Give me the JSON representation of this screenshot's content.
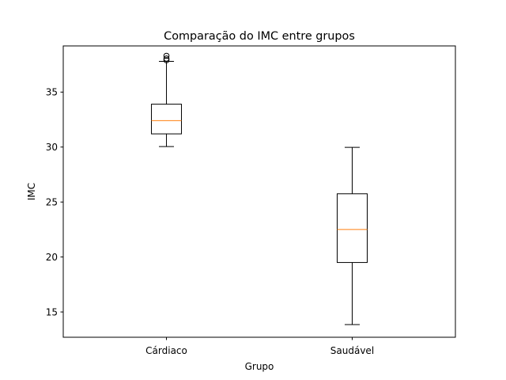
{
  "chart_data": {
    "type": "box",
    "title": "Comparação do IMC entre grupos",
    "xlabel": "Grupo",
    "ylabel": "IMC",
    "categories": [
      "Cárdiaco",
      "Saudável"
    ],
    "ylim": [
      12.7,
      39.2
    ],
    "yticks": [
      15,
      20,
      25,
      30,
      35
    ],
    "grid": false,
    "boxes": [
      {
        "category": "Cárdiaco",
        "whisker_low": 30.05,
        "q1": 31.2,
        "median": 32.4,
        "q3": 33.9,
        "whisker_high": 37.8,
        "outliers": [
          37.9,
          38.05,
          38.3
        ]
      },
      {
        "category": "Saudável",
        "whisker_low": 13.85,
        "q1": 19.5,
        "median": 22.5,
        "q3": 25.75,
        "whisker_high": 29.97,
        "outliers": []
      }
    ],
    "colors": {
      "median": "#ff7f0e",
      "box": "#000000",
      "axis": "#000000"
    }
  }
}
